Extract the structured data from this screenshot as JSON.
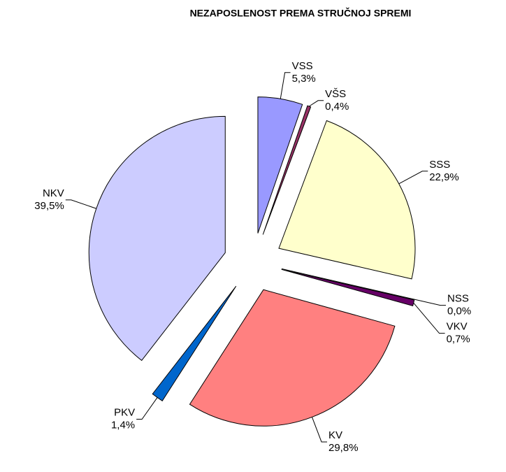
{
  "chart_data": {
    "type": "pie",
    "title": "NEZAPOSLENOST PREMA STRUČNOJ SPREMI",
    "categories": [
      "VSS",
      "VŠS",
      "SSS",
      "NSS",
      "VKV",
      "KV",
      "PKV",
      "NKV"
    ],
    "values": [
      5.3,
      0.4,
      22.9,
      0.0,
      0.7,
      29.8,
      1.4,
      39.5
    ],
    "value_labels": [
      "5,3%",
      "0,4%",
      "22,9%",
      "0,0%",
      "0,7%",
      "29,8%",
      "1,4%",
      "39,5%"
    ],
    "colors": [
      "#9999ff",
      "#993366",
      "#ffffcc",
      "#ccffff",
      "#660066",
      "#ff8080",
      "#0066cc",
      "#ccccff"
    ]
  }
}
